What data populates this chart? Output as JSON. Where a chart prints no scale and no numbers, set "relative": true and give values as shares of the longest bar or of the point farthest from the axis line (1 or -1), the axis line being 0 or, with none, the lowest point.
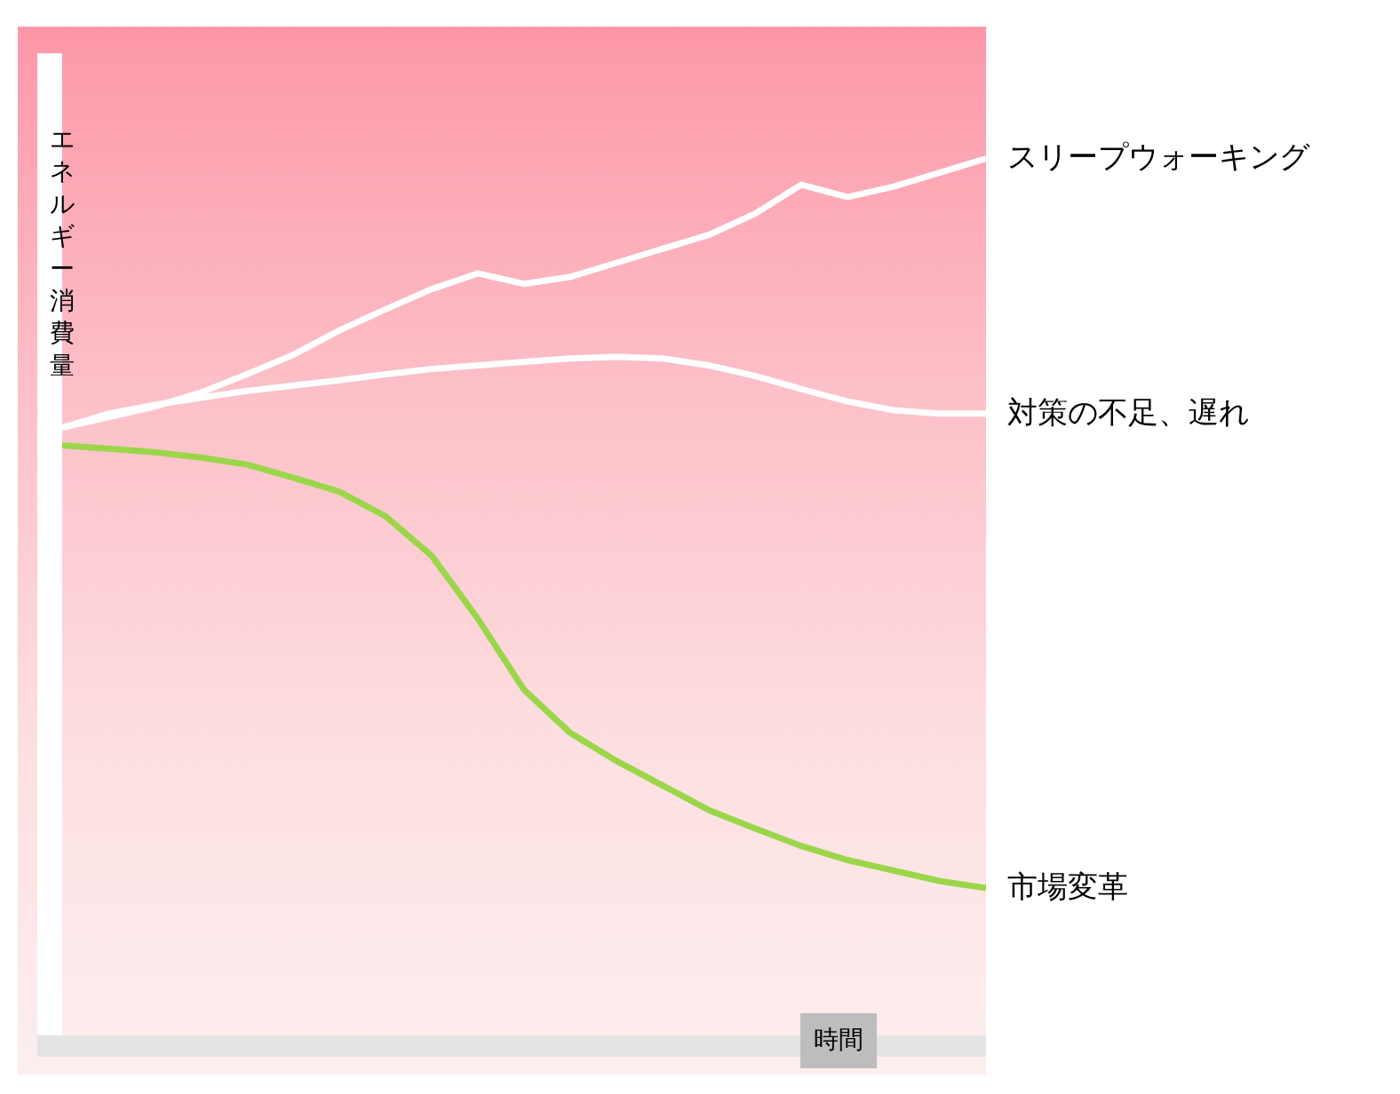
{
  "chart_data": {
    "type": "line",
    "relative": true,
    "xlabel": "時間",
    "ylabel": "エネルギー消費量",
    "legend": false,
    "grid": false,
    "marker": "none",
    "line_style": "solid",
    "categories": [
      null,
      null,
      null,
      null,
      null,
      null,
      null,
      null,
      null,
      null,
      null,
      null,
      null,
      null,
      null,
      null,
      null,
      null,
      null,
      null,
      null
    ],
    "series": [
      {
        "name": "スリープウォーキング",
        "color": "#ffffff",
        "values": [
          0.693,
          0.705,
          0.717,
          0.733,
          0.754,
          0.776,
          0.804,
          0.828,
          0.851,
          0.869,
          0.857,
          0.865,
          0.881,
          0.897,
          0.913,
          0.937,
          0.97,
          0.956,
          0.968,
          0.984,
          1
        ]
      },
      {
        "name": "対策の不足、遅れ",
        "color": "#ffffff",
        "values": [
          0.693,
          0.709,
          0.719,
          0.727,
          0.735,
          0.741,
          0.747,
          0.754,
          0.76,
          0.764,
          0.768,
          0.772,
          0.774,
          0.772,
          0.764,
          0.752,
          0.737,
          0.723,
          0.713,
          0.709,
          0.709
        ]
      },
      {
        "name": "市場変革",
        "color": "#9bd64a",
        "values": [
          0.673,
          0.669,
          0.665,
          0.659,
          0.651,
          0.636,
          0.62,
          0.592,
          0.547,
          0.475,
          0.394,
          0.345,
          0.313,
          0.285,
          0.257,
          0.236,
          0.216,
          0.2,
          0.188,
          0.176,
          0.168
        ]
      }
    ]
  }
}
